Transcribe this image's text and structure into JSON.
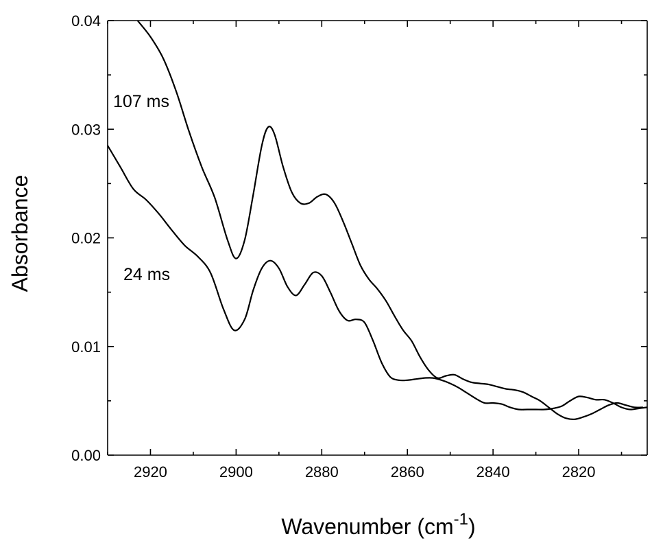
{
  "chart_data": {
    "type": "line",
    "xlabel": "Wavenumber (cm",
    "xlabel_sup": "-1",
    "xlabel_close": ")",
    "ylabel": "Absorbance",
    "xlim": [
      2930,
      2804
    ],
    "ylim": [
      0.0,
      0.04
    ],
    "x_reversed": true,
    "x_ticks": [
      2920,
      2900,
      2880,
      2860,
      2840,
      2820
    ],
    "x_tick_labels": [
      "2920",
      "2900",
      "2880",
      "2860",
      "2840",
      "2820"
    ],
    "y_ticks": [
      0.0,
      0.01,
      0.02,
      0.03,
      0.04
    ],
    "y_tick_labels": [
      "0.00",
      "0.01",
      "0.02",
      "0.03",
      "0.04"
    ],
    "grid": false,
    "series": [
      {
        "name": "107 ms",
        "x": [
          2923,
          2920,
          2917,
          2914,
          2911,
          2908,
          2905,
          2902,
          2900,
          2898,
          2896,
          2894,
          2892.5,
          2891,
          2889,
          2887,
          2885,
          2883,
          2881,
          2879,
          2877,
          2875,
          2873,
          2871,
          2869,
          2867,
          2865,
          2863,
          2861,
          2859,
          2857,
          2855,
          2853,
          2851,
          2849,
          2847,
          2845,
          2843,
          2841,
          2839,
          2837,
          2835,
          2833,
          2831,
          2829,
          2827,
          2825,
          2823,
          2821,
          2819,
          2817,
          2815,
          2813,
          2811,
          2809,
          2807,
          2805
        ],
        "y": [
          0.04,
          0.0385,
          0.0365,
          0.0335,
          0.0298,
          0.0265,
          0.0237,
          0.0198,
          0.0181,
          0.0198,
          0.024,
          0.0285,
          0.0302,
          0.0295,
          0.0265,
          0.0242,
          0.0232,
          0.0232,
          0.0238,
          0.024,
          0.0232,
          0.0215,
          0.0195,
          0.0175,
          0.0162,
          0.0153,
          0.0142,
          0.0128,
          0.0115,
          0.0105,
          0.009,
          0.0078,
          0.0071,
          0.0073,
          0.0074,
          0.007,
          0.0067,
          0.0066,
          0.0065,
          0.0063,
          0.0061,
          0.006,
          0.0058,
          0.0054,
          0.005,
          0.0044,
          0.0038,
          0.0034,
          0.0033,
          0.0035,
          0.0038,
          0.0042,
          0.0046,
          0.0048,
          0.0046,
          0.0044,
          0.0044
        ]
      },
      {
        "name": "24 ms",
        "x": [
          2930,
          2927,
          2924,
          2921,
          2918,
          2915,
          2912,
          2909,
          2906,
          2903,
          2900.5,
          2898,
          2896,
          2894,
          2892,
          2890,
          2888,
          2886,
          2884,
          2882,
          2880,
          2878,
          2876,
          2874,
          2872,
          2870,
          2868,
          2866,
          2864,
          2862,
          2860,
          2858,
          2856,
          2854,
          2852,
          2850,
          2848,
          2846,
          2844,
          2842,
          2840,
          2838,
          2836,
          2834,
          2832,
          2830,
          2828,
          2826,
          2824,
          2822,
          2820,
          2818,
          2816,
          2814,
          2812,
          2810,
          2808,
          2806,
          2804
        ],
        "y": [
          0.0285,
          0.0265,
          0.0245,
          0.0235,
          0.0222,
          0.0207,
          0.0193,
          0.0183,
          0.0168,
          0.0135,
          0.0115,
          0.0125,
          0.0152,
          0.0172,
          0.0179,
          0.0172,
          0.0155,
          0.0147,
          0.0157,
          0.0168,
          0.0165,
          0.015,
          0.0133,
          0.0124,
          0.0125,
          0.0122,
          0.0105,
          0.0085,
          0.0072,
          0.0069,
          0.0069,
          0.007,
          0.0071,
          0.0071,
          0.0069,
          0.0066,
          0.0062,
          0.0057,
          0.0052,
          0.0048,
          0.0048,
          0.0047,
          0.0044,
          0.0042,
          0.0042,
          0.0042,
          0.0042,
          0.0043,
          0.0045,
          0.005,
          0.0054,
          0.0053,
          0.0051,
          0.0051,
          0.0048,
          0.0044,
          0.0042,
          0.0043,
          0.0044
        ]
      }
    ],
    "annotations": [
      {
        "text": "107 ms",
        "series": 0
      },
      {
        "text": "24 ms",
        "series": 1
      }
    ]
  }
}
